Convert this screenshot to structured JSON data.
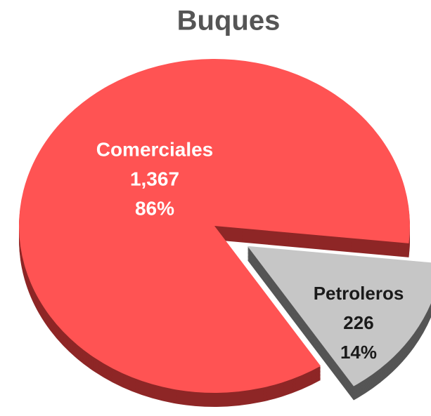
{
  "chart_data": {
    "type": "pie",
    "title": "Buques",
    "categories": [
      "Comerciales",
      "Petroleros"
    ],
    "values": [
      1367,
      226
    ],
    "value_labels": [
      "1,367",
      "226"
    ],
    "percentages": [
      86,
      14
    ],
    "percentage_labels": [
      "86%",
      "14%"
    ],
    "colors": [
      "#ff5353",
      "#c6c6c6"
    ],
    "side_colors": [
      "#8e2626",
      "#555555"
    ],
    "label_colors": [
      "#ffffff",
      "#1a1a1a"
    ],
    "exploded": [
      false,
      true
    ]
  }
}
